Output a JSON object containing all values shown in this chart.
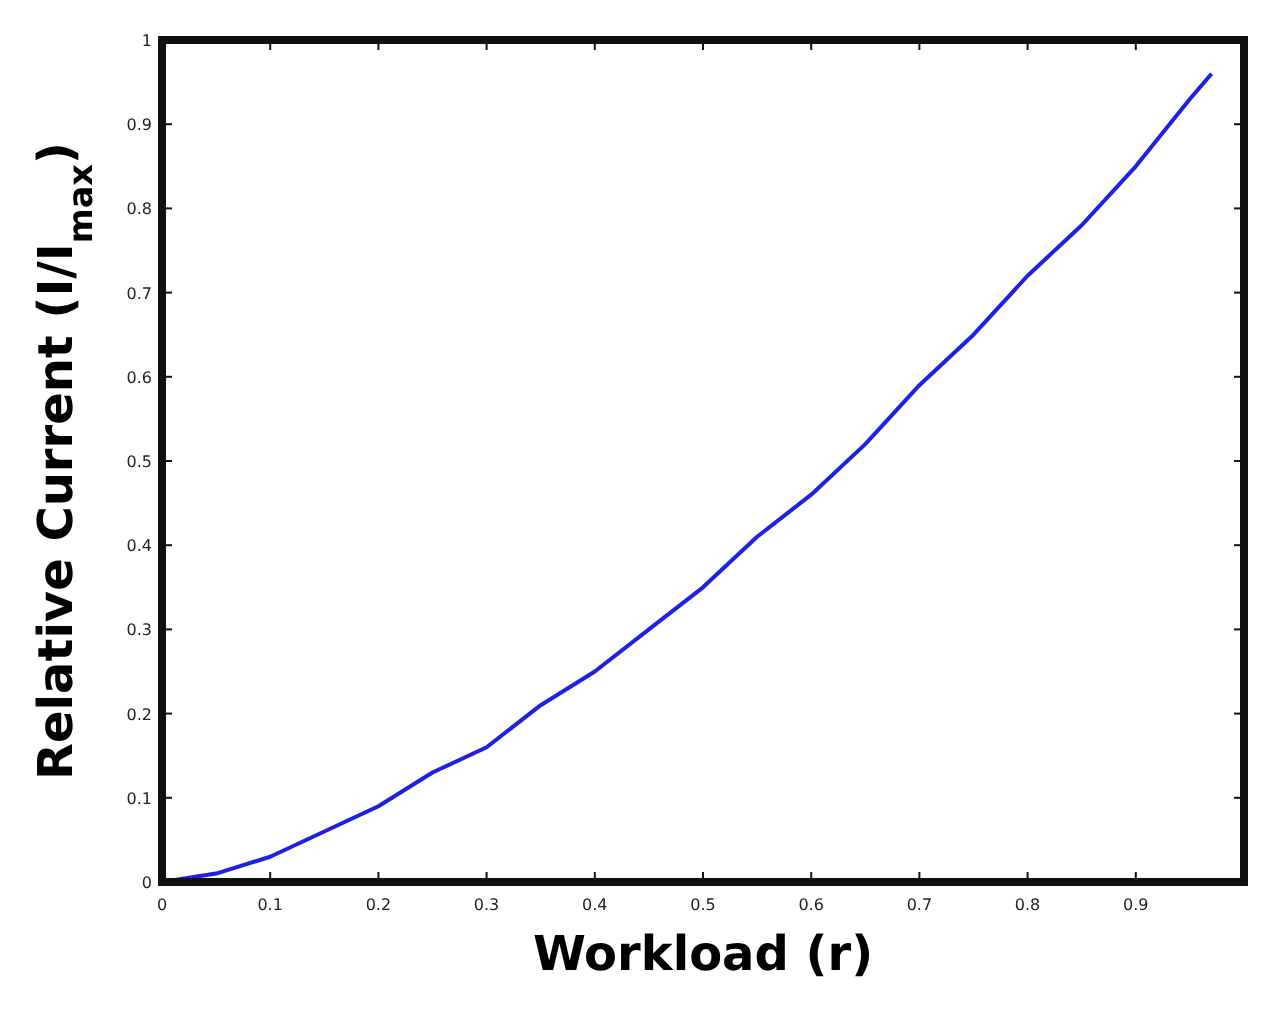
{
  "chart_data": {
    "type": "line",
    "xlabel": "Workload (r)",
    "ylabel": "Relative Current  (I/I$_{max}$)",
    "x": [
      0,
      0.05,
      0.1,
      0.15,
      0.2,
      0.25,
      0.3,
      0.35,
      0.4,
      0.45,
      0.5,
      0.55,
      0.6,
      0.65,
      0.7,
      0.75,
      0.8,
      0.85,
      0.9,
      0.95,
      0.97
    ],
    "series": [
      {
        "color": "#1f1fe6",
        "values": [
          0,
          0.01,
          0.03,
          0.06,
          0.09,
          0.13,
          0.16,
          0.21,
          0.25,
          0.3,
          0.35,
          0.41,
          0.46,
          0.52,
          0.59,
          0.65,
          0.72,
          0.78,
          0.85,
          0.93,
          0.96
        ]
      }
    ],
    "xlim": [
      0,
      1
    ],
    "ylim": [
      0,
      1
    ],
    "xticks": [
      0,
      0.1,
      0.2,
      0.3,
      0.4,
      0.5,
      0.6,
      0.7,
      0.8,
      0.9
    ],
    "yticks": [
      0,
      0.1,
      0.2,
      0.3,
      0.4,
      0.5,
      0.6,
      0.7,
      0.8,
      0.9,
      1
    ],
    "grid": false,
    "marker": "none",
    "line_style": "solid"
  }
}
